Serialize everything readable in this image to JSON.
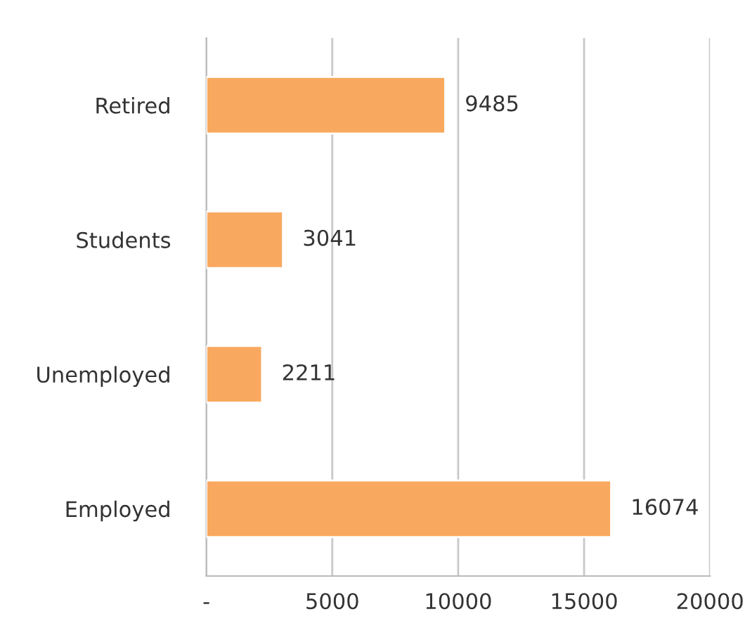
{
  "chart_data": {
    "type": "bar",
    "orientation": "horizontal",
    "categories": [
      "Retired",
      "Students",
      "Unemployed",
      "Employed"
    ],
    "values": [
      9485,
      3041,
      2211,
      16074
    ],
    "color": "#f9a95f",
    "data_labels": true,
    "xlim": [
      0,
      20000
    ],
    "xticks": [
      {
        "value": 0,
        "label": "-"
      },
      5000,
      10000,
      15000,
      20000
    ],
    "grid": "x",
    "legend": false
  }
}
